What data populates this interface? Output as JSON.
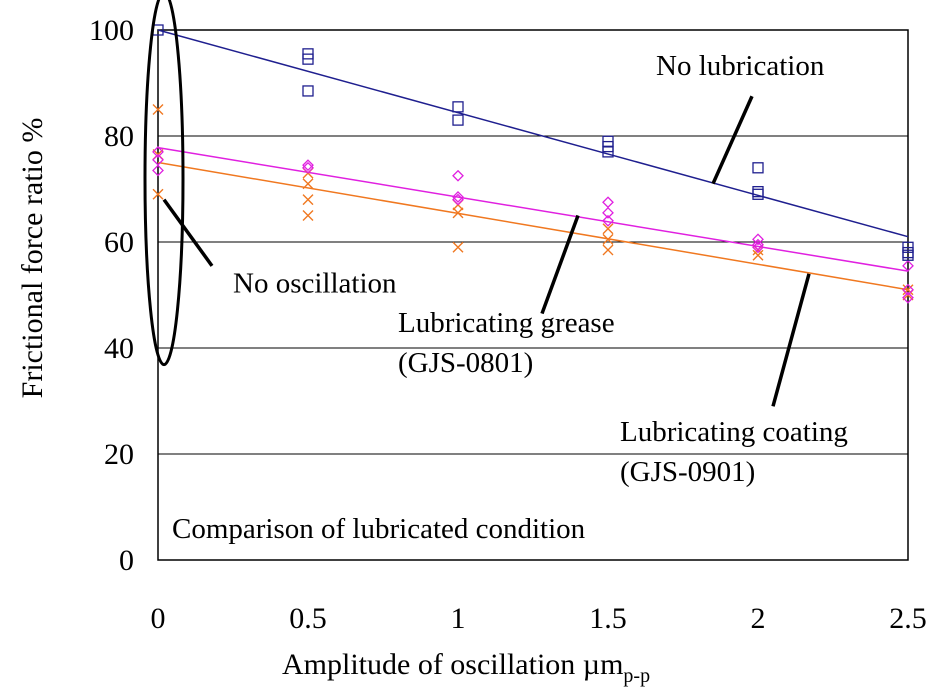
{
  "chart_data": {
    "type": "scatter",
    "xlabel": "Amplitude of oscillation µm",
    "xlabel_sub": "p-p",
    "ylabel": "Frictional force ratio %",
    "xlim": [
      0,
      2.5
    ],
    "ylim": [
      0,
      100
    ],
    "x_ticks": [
      "0",
      "0.5",
      "1",
      "1.5",
      "2",
      "2.5"
    ],
    "y_ticks": [
      "0",
      "20",
      "40",
      "60",
      "80",
      "100"
    ],
    "grid": "horizontal",
    "series": [
      {
        "name": "No lubrication",
        "marker": "square",
        "color": "#1f1f8f",
        "points": [
          [
            0,
            100
          ],
          [
            0.5,
            95.5
          ],
          [
            0.5,
            94.5
          ],
          [
            0.5,
            88.5
          ],
          [
            1,
            85.5
          ],
          [
            1,
            83
          ],
          [
            1.5,
            79
          ],
          [
            1.5,
            78
          ],
          [
            1.5,
            77
          ],
          [
            2,
            74
          ],
          [
            2,
            69.5
          ],
          [
            2,
            69
          ],
          [
            2.5,
            59
          ],
          [
            2.5,
            58
          ],
          [
            2.5,
            57.5
          ]
        ],
        "trend": [
          [
            0,
            100
          ],
          [
            2.5,
            61
          ]
        ]
      },
      {
        "name": "Lubricating grease (GJS-0801)",
        "marker": "diamond",
        "color": "#e020e0",
        "points": [
          [
            0,
            77
          ],
          [
            0,
            75.5
          ],
          [
            0,
            73.5
          ],
          [
            0.5,
            74.5
          ],
          [
            0.5,
            74
          ],
          [
            1,
            72.5
          ],
          [
            1,
            68.5
          ],
          [
            1,
            68
          ],
          [
            1.5,
            67.5
          ],
          [
            1.5,
            65.5
          ],
          [
            1.5,
            64
          ],
          [
            2,
            60.5
          ],
          [
            2,
            59.5
          ],
          [
            2,
            59
          ],
          [
            2.5,
            55.5
          ],
          [
            2.5,
            51
          ],
          [
            2.5,
            49.5
          ]
        ],
        "trend": [
          [
            0,
            77.8
          ],
          [
            2.5,
            54.5
          ]
        ]
      },
      {
        "name": "Lubricating coating (GJS-0901)",
        "marker": "cross",
        "color": "#f07820",
        "points": [
          [
            0,
            85
          ],
          [
            0,
            76.5
          ],
          [
            0,
            69
          ],
          [
            0.5,
            73
          ],
          [
            0.5,
            71
          ],
          [
            0.5,
            68
          ],
          [
            0.5,
            65
          ],
          [
            1,
            67
          ],
          [
            1,
            65.5
          ],
          [
            1,
            59
          ],
          [
            1.5,
            62.5
          ],
          [
            1.5,
            60.5
          ],
          [
            1.5,
            58.5
          ],
          [
            2,
            58.5
          ],
          [
            2,
            57.5
          ],
          [
            2.5,
            51
          ],
          [
            2.5,
            50
          ]
        ],
        "trend": [
          [
            0,
            75
          ],
          [
            2.5,
            51
          ]
        ]
      }
    ],
    "annotations": [
      {
        "id": "no-oscillation",
        "lines": [
          "No oscillation"
        ],
        "text_pos": [
          0.25,
          50.5
        ],
        "leader": [
          [
            0.02,
            68
          ],
          [
            0.18,
            55.5
          ]
        ]
      },
      {
        "id": "no-lubrication",
        "lines": [
          "No lubrication"
        ],
        "text_pos": [
          1.66,
          91.5
        ],
        "leader": [
          [
            1.98,
            87.5
          ],
          [
            1.85,
            71
          ]
        ]
      },
      {
        "id": "grease",
        "lines": [
          "Lubricating grease",
          "(GJS-0801)"
        ],
        "text_pos": [
          0.8,
          43
        ],
        "leader": [
          [
            1.4,
            65
          ],
          [
            1.28,
            46.5
          ]
        ]
      },
      {
        "id": "coating",
        "lines": [
          "Lubricating coating",
          "(GJS-0901)"
        ],
        "text_pos": [
          1.54,
          22.5
        ],
        "leader": [
          [
            2.17,
            54
          ],
          [
            2.05,
            29
          ]
        ]
      }
    ],
    "caption": "Comparison of lubricated condition"
  }
}
